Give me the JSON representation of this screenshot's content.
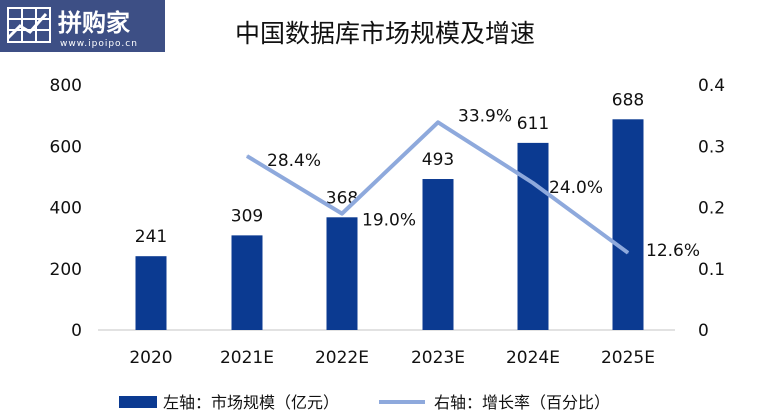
{
  "logo": {
    "brand": "拼购家",
    "url": "www.ipoipo.cn",
    "colors": {
      "background": "#3d4f85",
      "text": "#ffffff"
    }
  },
  "chart_data": {
    "type": "bar",
    "title": "中国数据库市场规模及增速",
    "categories": [
      "2020",
      "2021E",
      "2022E",
      "2023E",
      "2024E",
      "2025E"
    ],
    "series": [
      {
        "name": "左轴：市场规模（亿元）",
        "type": "bar",
        "axis": "left",
        "values": [
          241,
          309,
          368,
          493,
          611,
          688
        ],
        "labels": [
          "241",
          "309",
          "368",
          "493",
          "611",
          "688"
        ],
        "color": "#0b3a91"
      },
      {
        "name": "右轴：增长率（百分比）",
        "type": "line",
        "axis": "right",
        "values": [
          null,
          0.284,
          0.19,
          0.339,
          0.24,
          0.126
        ],
        "labels": [
          "",
          "28.4%",
          "19.0%",
          "33.9%",
          "24.0%",
          "12.6%"
        ],
        "color": "#8ea9dc"
      }
    ],
    "y_left": {
      "range": [
        0,
        800
      ],
      "ticks": [
        "0",
        "200",
        "400",
        "600",
        "800"
      ]
    },
    "y_right": {
      "range": [
        0,
        0.4
      ],
      "ticks": [
        "0",
        "0.1",
        "0.2",
        "0.3",
        "0.4"
      ]
    },
    "grid": false,
    "legend": "bottom"
  }
}
